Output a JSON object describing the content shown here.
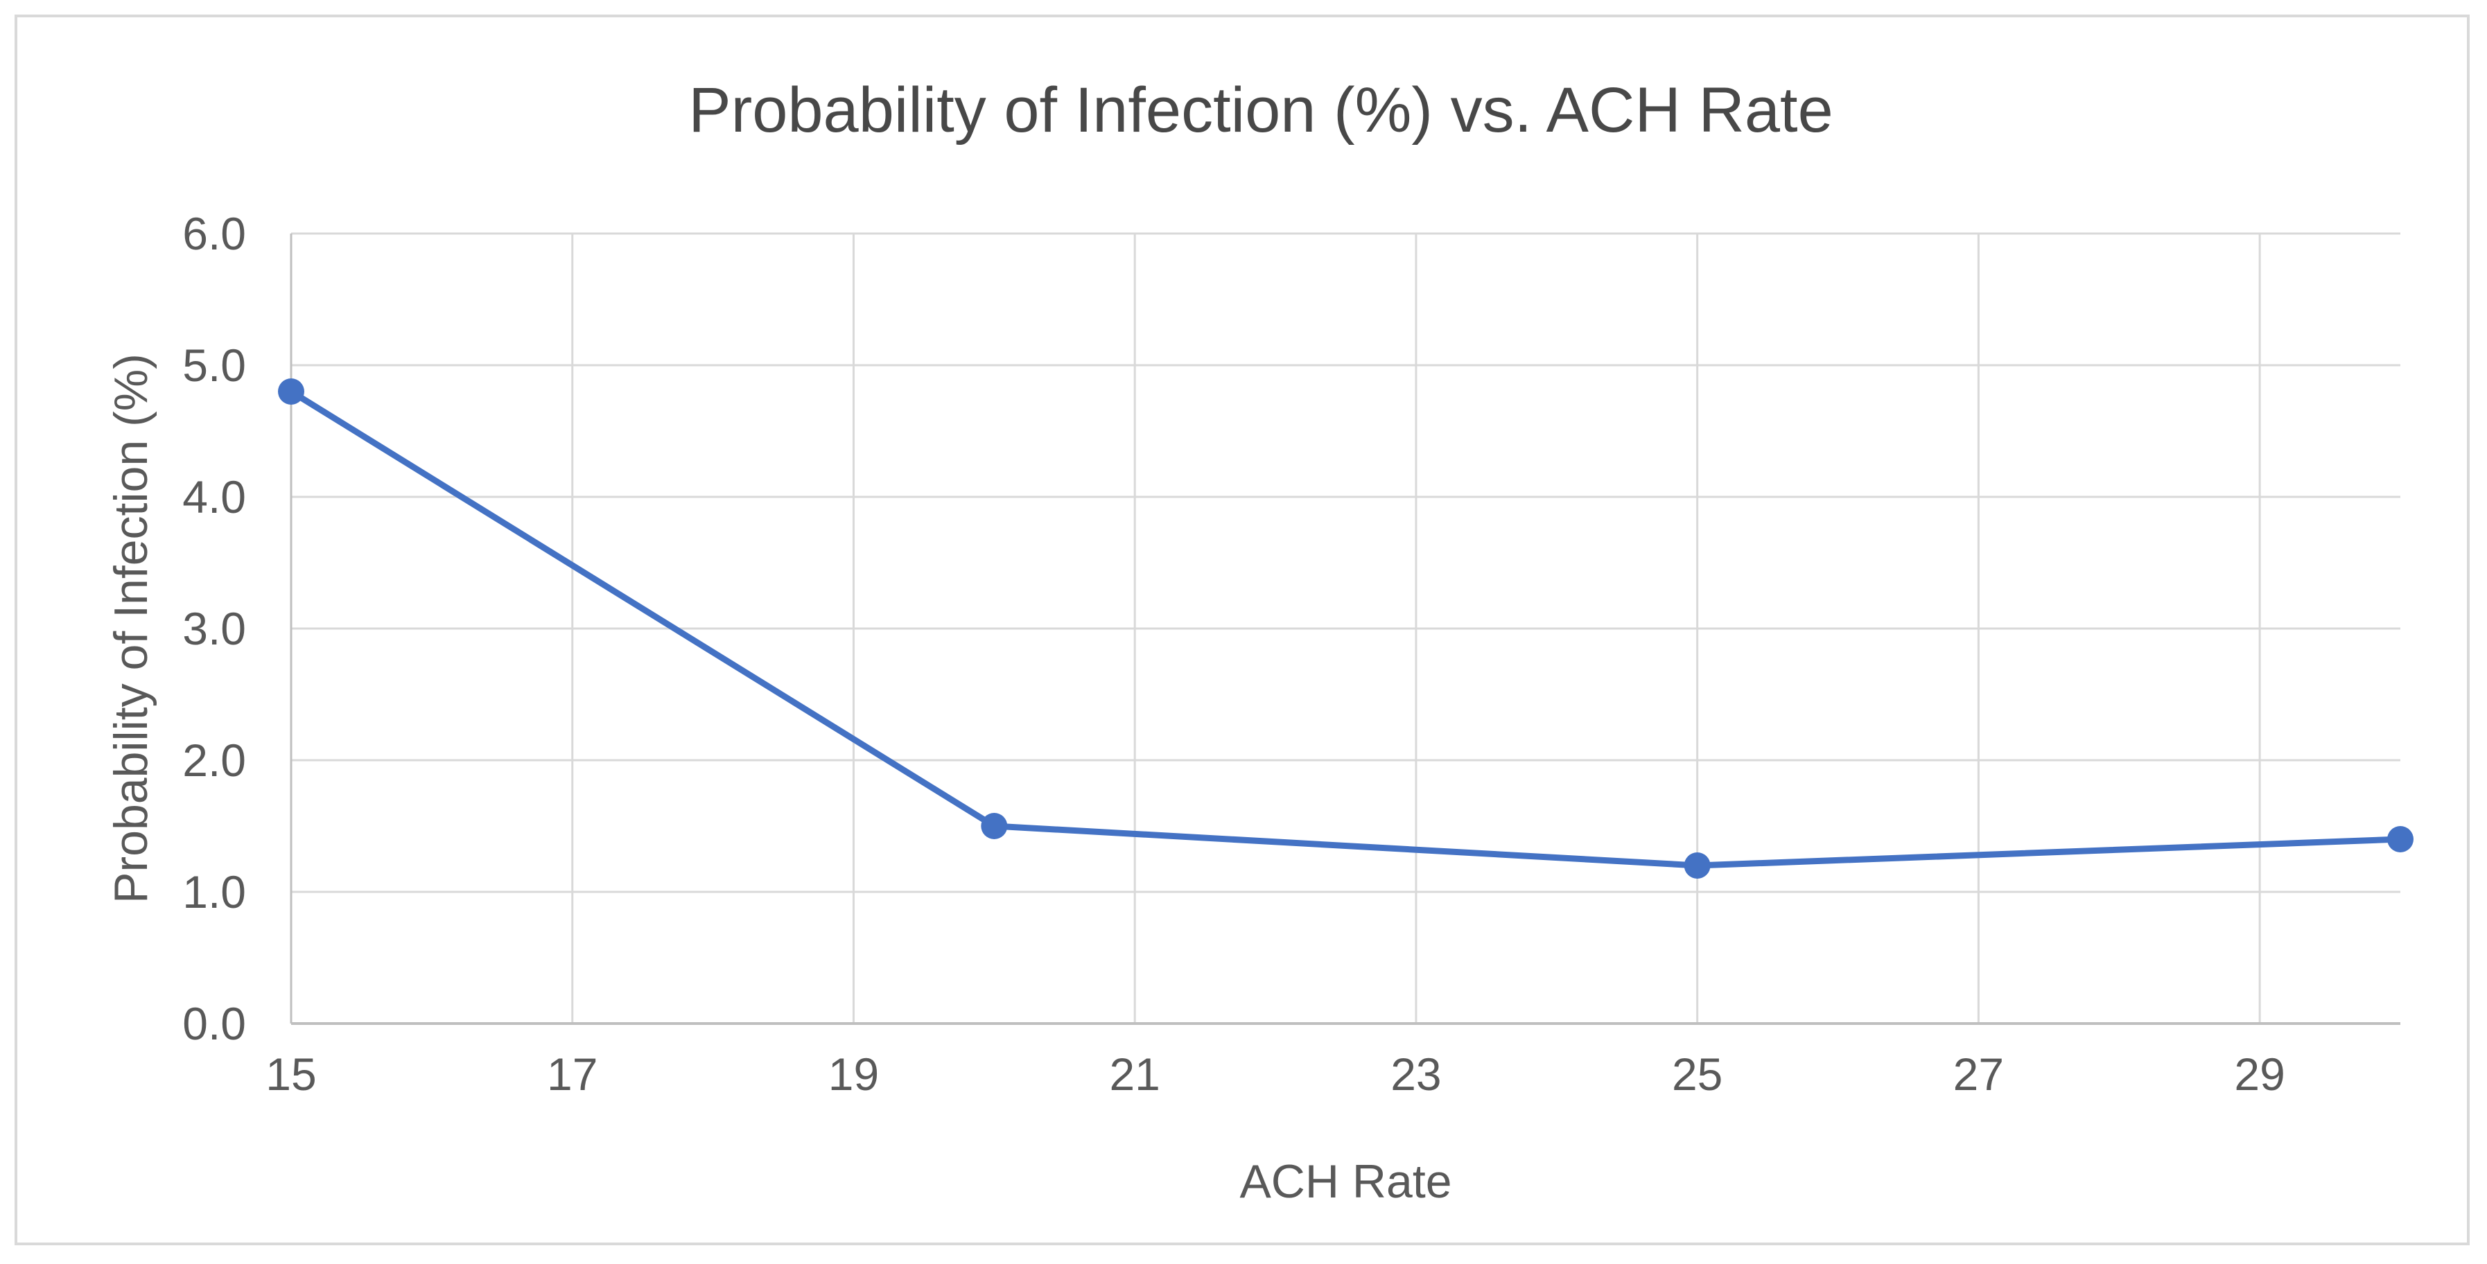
{
  "chart_data": {
    "type": "line",
    "title": "Probability of Infection (%) vs. ACH Rate",
    "xlabel": "ACH Rate",
    "ylabel": "Probability of Infection (%)",
    "x": [
      15,
      20,
      25,
      30
    ],
    "y": [
      4.8,
      1.5,
      1.2,
      1.4
    ],
    "series": [
      {
        "name": "Probability of Infection (%)",
        "x": [
          15,
          20,
          25,
          30
        ],
        "values": [
          4.8,
          1.5,
          1.2,
          1.4
        ]
      }
    ],
    "xlim": [
      15,
      30
    ],
    "ylim": [
      0,
      6
    ],
    "x_ticks": [
      15,
      17,
      19,
      21,
      23,
      25,
      27,
      29
    ],
    "x_tick_labels": [
      "15",
      "17",
      "19",
      "21",
      "23",
      "25",
      "27",
      "29"
    ],
    "y_ticks": [
      0,
      1,
      2,
      3,
      4,
      5,
      6
    ],
    "y_tick_labels": [
      "0.0",
      "1.0",
      "2.0",
      "3.0",
      "4.0",
      "5.0",
      "6.0"
    ],
    "grid": true,
    "legend": "none",
    "marker": "circle",
    "colors": {
      "series": "#4472C4",
      "gridline": "#D9D9D9",
      "axis_line": "#BFBFBF",
      "text": "#595959",
      "title": "#484848",
      "border": "#D9D9D9",
      "background": "#FFFFFF"
    }
  }
}
